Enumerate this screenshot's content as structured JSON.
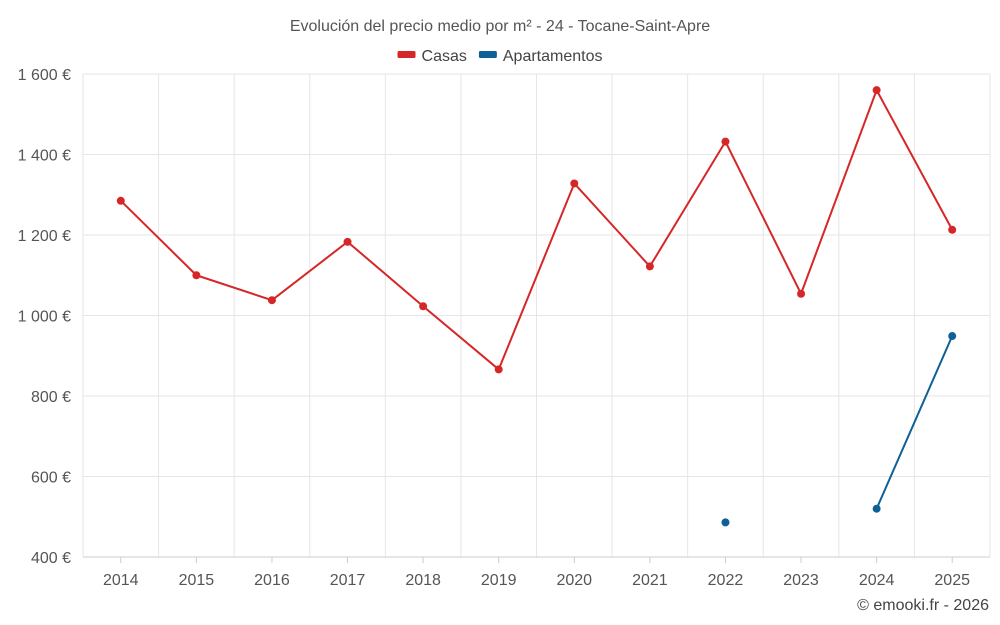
{
  "chart_data": {
    "type": "line",
    "title": "Evolución del precio medio por m² - 24 - Tocane-Saint-Apre",
    "categories": [
      "2014",
      "2015",
      "2016",
      "2017",
      "2018",
      "2019",
      "2020",
      "2021",
      "2022",
      "2023",
      "2024",
      "2025"
    ],
    "series": [
      {
        "name": "Casas",
        "color": "#d62728",
        "values": [
          1285,
          1100,
          1038,
          1183,
          1023,
          866,
          1328,
          1122,
          1432,
          1054,
          1560,
          1213
        ]
      },
      {
        "name": "Apartamentos",
        "color": "#0f6096",
        "values": [
          null,
          null,
          null,
          null,
          null,
          null,
          null,
          null,
          486,
          null,
          520,
          949
        ]
      }
    ],
    "yticks": [
      400,
      600,
      800,
      1000,
      1200,
      1400,
      1600
    ],
    "ytick_labels": [
      "400 €",
      "600 €",
      "800 €",
      "1 000 €",
      "1 200 €",
      "1 400 €",
      "1 600 €"
    ],
    "ylim": [
      400,
      1600
    ],
    "xlabel": "",
    "ylabel": "",
    "grid": true,
    "legend_position": "top-center"
  },
  "credit": "© emooki.fr - 2026"
}
